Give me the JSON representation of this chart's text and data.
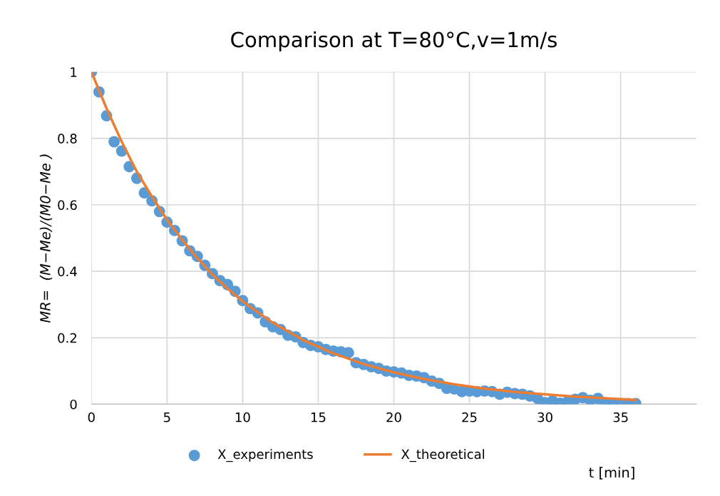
{
  "chart_data": {
    "type": "scatter",
    "title": "Comparison at T=80°C,v=1m/s",
    "xlabel": "t [min]",
    "ylabel": "MR=  (M−Me)/(M0−Me )",
    "xlim": [
      0,
      40
    ],
    "xticks": [
      0,
      5,
      10,
      15,
      20,
      25,
      30,
      35
    ],
    "ylim": [
      0,
      1
    ],
    "yticks": [
      0,
      {
        "value": 0.2,
        "label": "0.2"
      },
      {
        "value": 0.4,
        "label": "0.4"
      },
      {
        "value": 0.6,
        "label": "0.6"
      },
      {
        "value": 0.8,
        "label": "0.8"
      },
      1
    ],
    "grid": true,
    "legend": "bottom",
    "series": [
      {
        "name": "X_experiments",
        "color": "#5b9bd5",
        "marker": "circle",
        "x": [
          0,
          0.5,
          1,
          1.5,
          2,
          2.5,
          3,
          3.5,
          4,
          4.5,
          5,
          5.5,
          6,
          6.5,
          7,
          7.5,
          8,
          8.5,
          9,
          9.5,
          10,
          10.5,
          11,
          11.5,
          12,
          12.5,
          13,
          13.5,
          14,
          14.5,
          15,
          15.5,
          16,
          16.5,
          17,
          17.5,
          18,
          18.5,
          19,
          19.5,
          20,
          20.5,
          21,
          21.5,
          22,
          22.5,
          23,
          23.5,
          24,
          24.5,
          25,
          25.5,
          26,
          26.5,
          27,
          27.5,
          28,
          28.5,
          29,
          29.5,
          30,
          30.5,
          31,
          31.5,
          32,
          32.5,
          33,
          33.5,
          34,
          34.5,
          35,
          35.5,
          36
        ],
        "values": [
          1.0,
          0.94,
          0.868,
          0.79,
          0.762,
          0.715,
          0.68,
          0.636,
          0.612,
          0.58,
          0.548,
          0.523,
          0.492,
          0.462,
          0.445,
          0.418,
          0.393,
          0.372,
          0.36,
          0.34,
          0.312,
          0.288,
          0.275,
          0.248,
          0.233,
          0.225,
          0.208,
          0.203,
          0.186,
          0.177,
          0.173,
          0.165,
          0.16,
          0.158,
          0.155,
          0.125,
          0.12,
          0.113,
          0.108,
          0.1,
          0.097,
          0.094,
          0.087,
          0.085,
          0.08,
          0.07,
          0.063,
          0.048,
          0.046,
          0.038,
          0.04,
          0.038,
          0.04,
          0.038,
          0.03,
          0.036,
          0.032,
          0.03,
          0.025,
          0.018,
          0.005,
          0.01,
          0.003,
          0.008,
          0.015,
          0.02,
          0.012,
          0.018,
          0.002,
          0.002,
          0.002,
          0.002,
          0.002
        ]
      },
      {
        "name": "X_theoretical",
        "type": "line",
        "color": "#ed7d31",
        "marker": "none",
        "line_style": "solid",
        "x": [
          0,
          1,
          2,
          3,
          4,
          5,
          6,
          7,
          8,
          9,
          10,
          12,
          14,
          16,
          18,
          20,
          22,
          24,
          26,
          28,
          30,
          32,
          34,
          36
        ],
        "values": [
          1.0,
          0.89,
          0.79,
          0.7,
          0.625,
          0.555,
          0.495,
          0.44,
          0.39,
          0.348,
          0.31,
          0.245,
          0.193,
          0.153,
          0.121,
          0.096,
          0.076,
          0.06,
          0.047,
          0.037,
          0.03,
          0.023,
          0.018,
          0.013
        ]
      }
    ]
  }
}
